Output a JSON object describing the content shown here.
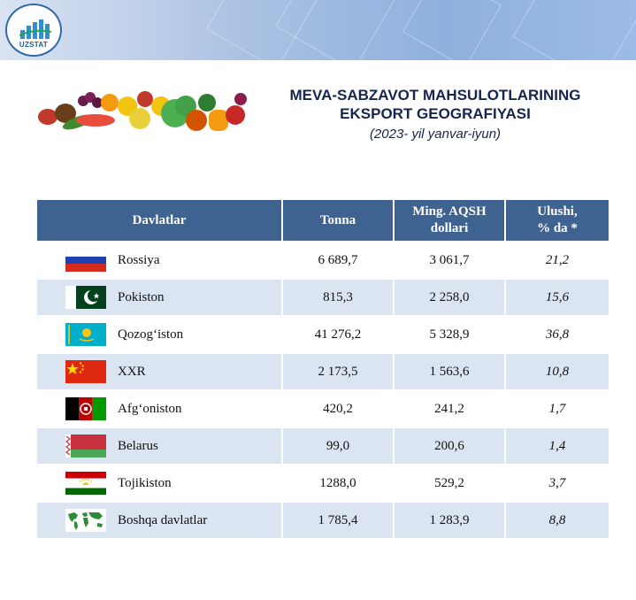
{
  "header": {
    "logo_text": "UZSTAT"
  },
  "title": {
    "line1": "MEVA-SABZAVOT MAHSULOTLARINING",
    "line2": "EKSPORT GEOGRAFIYASI",
    "line3": "(2023- yil yanvar-iyun)"
  },
  "table": {
    "headers": {
      "country": "Davlatlar",
      "tonna": "Tonna",
      "usd_1": "Ming. AQSH",
      "usd_2": "dollari",
      "share_1": "Ulushi,",
      "share_2": "% da *"
    },
    "rows": [
      {
        "flag": "russia-flag",
        "country": "Rossiya",
        "tonna": "6 689,7",
        "usd": "3 061,7",
        "share": "21,2"
      },
      {
        "flag": "pakistan-flag",
        "country": "Pokiston",
        "tonna": "815,3",
        "usd": "2 258,0",
        "share": "15,6"
      },
      {
        "flag": "kazakhstan-flag",
        "country": "Qozog‘iston",
        "tonna": "41 276,2",
        "usd": "5 328,9",
        "share": "36,8"
      },
      {
        "flag": "china-flag",
        "country": "XXR",
        "tonna": "2 173,5",
        "usd": "1 563,6",
        "share": "10,8"
      },
      {
        "flag": "afghanistan-flag",
        "country": "Afg‘oniston",
        "tonna": "420,2",
        "usd": "241,2",
        "share": "1,7"
      },
      {
        "flag": "belarus-flag",
        "country": "Belarus",
        "tonna": "99,0",
        "usd": "200,6",
        "share": "1,4"
      },
      {
        "flag": "tajikistan-flag",
        "country": "Tojikiston",
        "tonna": "1288,0",
        "usd": "529,2",
        "share": "3,7"
      },
      {
        "flag": "world-map-icon",
        "country": "Boshqa davlatlar",
        "tonna": "1 785,4",
        "usd": "1 283,9",
        "share": "8,8"
      }
    ]
  },
  "colors": {
    "header_bg": "#3f6391",
    "row_alt": "#dbe4f1",
    "title": "#16254f"
  }
}
